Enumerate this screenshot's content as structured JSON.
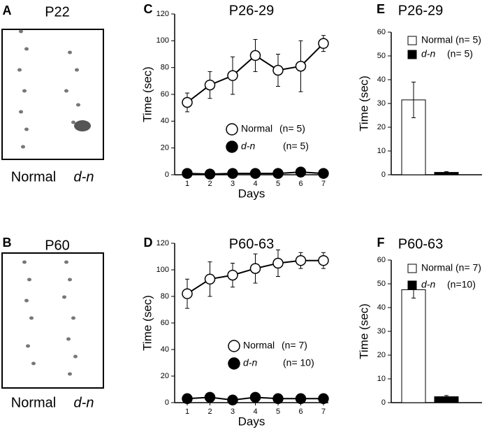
{
  "footprint_panels": [
    {
      "letter": "A",
      "title": "P22",
      "labels": [
        "Normal",
        "d-n"
      ]
    },
    {
      "letter": "B",
      "title": "P60",
      "labels": [
        "Normal",
        "d-n"
      ]
    }
  ],
  "chart_data": [
    {
      "type": "line",
      "letter": "C",
      "title": "P26-29",
      "x_label": "Days",
      "y_label": "Time (sec)",
      "categories": [
        "1",
        "2",
        "3",
        "4",
        "5",
        "6",
        "7"
      ],
      "ylim": [
        0,
        120
      ],
      "yticks": [
        0,
        20,
        40,
        60,
        80,
        100,
        120
      ],
      "series": [
        {
          "name": "Normal",
          "n_label": "(n= 5)",
          "color": "#ffffff",
          "values": [
            54,
            67,
            74,
            89,
            78,
            81,
            98
          ],
          "errors": [
            7,
            10,
            14,
            12,
            12,
            19,
            6
          ]
        },
        {
          "name": "d-n",
          "n_label": "(n= 5)",
          "color": "#000000",
          "values": [
            1,
            0.5,
            1,
            1,
            1,
            2,
            1
          ],
          "errors": [
            0.5,
            0.5,
            0.5,
            0.5,
            0.5,
            1,
            0.5
          ]
        }
      ]
    },
    {
      "type": "line",
      "letter": "D",
      "title": "P60-63",
      "x_label": "Days",
      "y_label": "Time (sec)",
      "categories": [
        "1",
        "2",
        "3",
        "4",
        "5",
        "6",
        "7"
      ],
      "ylim": [
        0,
        120
      ],
      "yticks": [
        0,
        20,
        40,
        60,
        80,
        100,
        120
      ],
      "series": [
        {
          "name": "Normal",
          "n_label": "(n= 7)",
          "color": "#ffffff",
          "values": [
            82,
            93,
            96,
            101,
            105,
            107,
            107
          ],
          "errors": [
            11,
            13,
            9,
            11,
            10,
            6,
            6
          ]
        },
        {
          "name": "d-n",
          "n_label": "(n= 10)",
          "color": "#000000",
          "values": [
            3,
            4,
            2,
            4,
            3,
            3,
            3
          ],
          "errors": [
            1,
            1,
            1,
            1,
            1,
            1,
            1
          ]
        }
      ]
    },
    {
      "type": "bar",
      "letter": "E",
      "title": "P26-29",
      "y_label": "Time (sec)",
      "ylim": [
        0,
        60
      ],
      "yticks": [
        0,
        10,
        20,
        30,
        40,
        50,
        60
      ],
      "series": [
        {
          "name": "Normal",
          "n_label": "(n= 5)",
          "color": "#ffffff",
          "values": [
            31.5
          ],
          "errors": [
            7.5
          ]
        },
        {
          "name": "d-n",
          "n_label": "(n= 5)",
          "color": "#000000",
          "values": [
            1
          ],
          "errors": [
            0.3
          ]
        }
      ]
    },
    {
      "type": "bar",
      "letter": "F",
      "title": "P60-63",
      "y_label": "Time (sec)",
      "ylim": [
        0,
        60
      ],
      "yticks": [
        0,
        10,
        20,
        30,
        40,
        50,
        60
      ],
      "series": [
        {
          "name": "Normal",
          "n_label": "(n= 7)",
          "color": "#ffffff",
          "values": [
            47.5
          ],
          "errors": [
            3.5
          ]
        },
        {
          "name": "d-n",
          "n_label": "(n=10)",
          "color": "#000000",
          "values": [
            2.5
          ],
          "errors": [
            0.5
          ]
        }
      ]
    }
  ]
}
